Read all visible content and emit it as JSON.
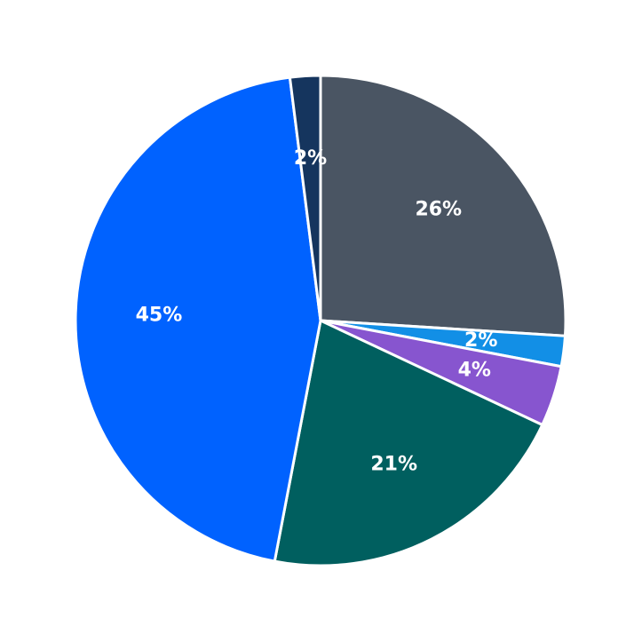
{
  "chart_data": {
    "type": "pie",
    "values": [
      26,
      2,
      4,
      21,
      45,
      2
    ],
    "value_labels": [
      "26%",
      "2%",
      "4%",
      "21%",
      "45%",
      "2%"
    ],
    "colors": [
      "#4a5563",
      "#128fe6",
      "#8755cf",
      "#005f5f",
      "#0062ff",
      "#15355e"
    ]
  }
}
